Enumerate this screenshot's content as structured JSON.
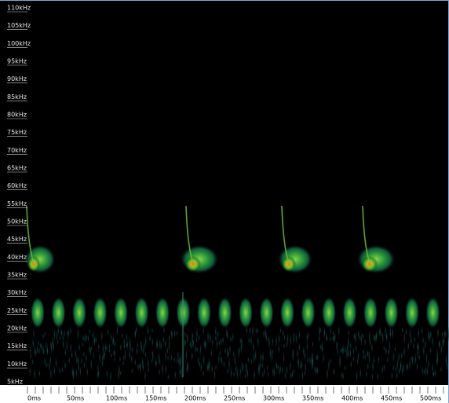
{
  "y_axis": {
    "labels": [
      "110kHz",
      "105kHz",
      "100kHz",
      "95kHz",
      "90kHz",
      "85kHz",
      "80kHz",
      "75kHz",
      "70kHz",
      "65kHz",
      "60kHz",
      "55kHz",
      "50kHz",
      "45kHz",
      "40kHz",
      "35kHz",
      "30kHz",
      "25kHz",
      "20kHz",
      "15kHz",
      "10kHz",
      "5kHz"
    ]
  },
  "x_axis": {
    "labels": [
      "0ms",
      "50ms",
      "100ms",
      "150ms",
      "200ms",
      "250ms",
      "300ms",
      "350ms",
      "400ms",
      "450ms",
      "500ms"
    ]
  }
}
